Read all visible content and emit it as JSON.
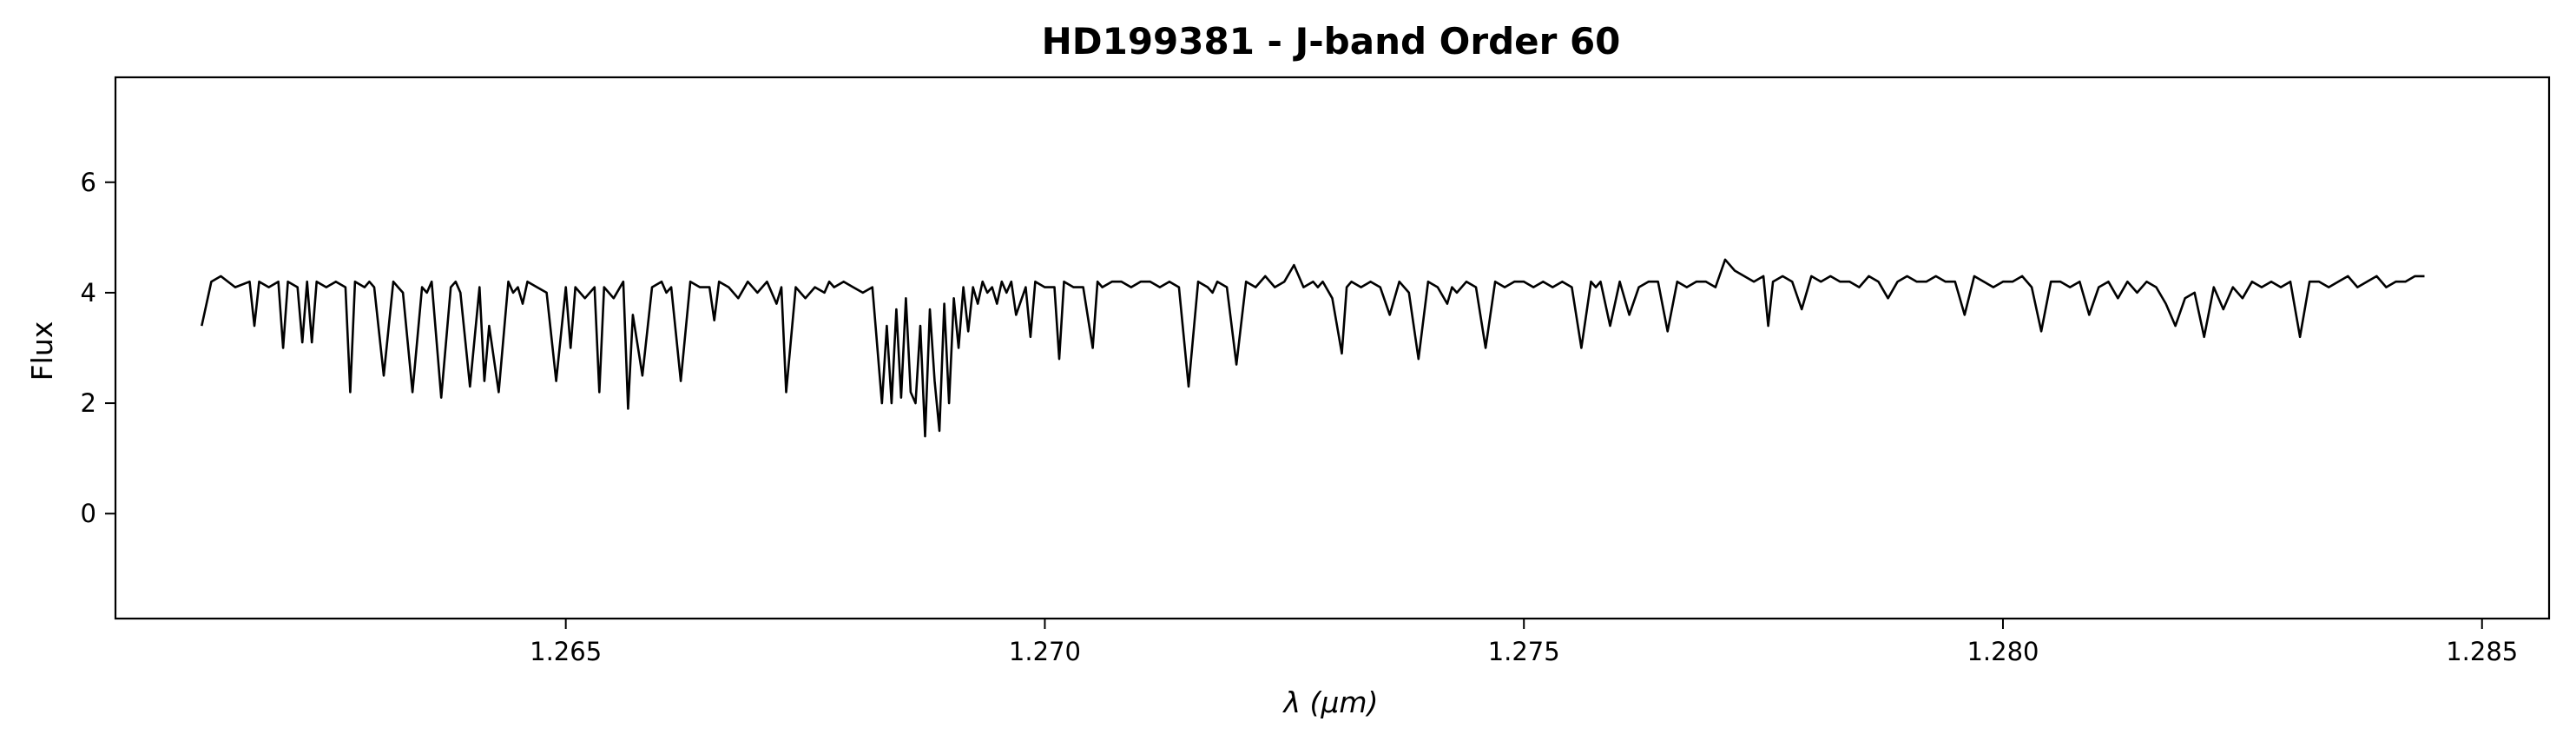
{
  "chart_data": {
    "type": "line",
    "title": "HD199381 - J-band Order 60",
    "xlabel": "λ (μm)",
    "ylabel": "Flux",
    "xlim": [
      1.2603,
      1.2857
    ],
    "ylim": [
      -1.9,
      7.9
    ],
    "xticks": [
      "1.265",
      "1.270",
      "1.275",
      "1.280",
      "1.285"
    ],
    "xtick_values": [
      1.265,
      1.27,
      1.275,
      1.28,
      1.285
    ],
    "yticks": [
      "0",
      "2",
      "4",
      "6"
    ],
    "ytick_values": [
      0,
      2,
      4,
      6
    ],
    "grid": false,
    "line_color": "#000000",
    "series": [
      {
        "x": [
          1.2612,
          1.2613,
          1.2614,
          1.26155,
          1.2617,
          1.26175,
          1.2618,
          1.2619,
          1.262,
          1.26205,
          1.2621,
          1.2622,
          1.26225,
          1.2623,
          1.26235,
          1.2624,
          1.2625,
          1.2626,
          1.2627,
          1.26275,
          1.2628,
          1.2629,
          1.26295,
          1.263,
          1.2631,
          1.2632,
          1.26325,
          1.2633,
          1.2634,
          1.2635,
          1.26355,
          1.2636,
          1.2637,
          1.2638,
          1.26385,
          1.2639,
          1.264,
          1.2641,
          1.26415,
          1.2642,
          1.2643,
          1.2644,
          1.26445,
          1.2645,
          1.26455,
          1.2646,
          1.2647,
          1.2648,
          1.2649,
          1.265,
          1.26505,
          1.2651,
          1.2652,
          1.2653,
          1.26535,
          1.2654,
          1.2655,
          1.2656,
          1.26565,
          1.2657,
          1.2658,
          1.2659,
          1.266,
          1.26605,
          1.2661,
          1.2662,
          1.2663,
          1.2664,
          1.2665,
          1.26655,
          1.2666,
          1.2667,
          1.2668,
          1.2669,
          1.267,
          1.2671,
          1.2672,
          1.26725,
          1.2673,
          1.2674,
          1.2675,
          1.2676,
          1.2677,
          1.26775,
          1.2678,
          1.2679,
          1.268,
          1.2681,
          1.2682,
          1.2683,
          1.26835,
          1.2684,
          1.26845,
          1.2685,
          1.26855,
          1.2686,
          1.26865,
          1.2687,
          1.26875,
          1.2688,
          1.26885,
          1.2689,
          1.26895,
          1.269,
          1.26905,
          1.2691,
          1.26915,
          1.2692,
          1.26925,
          1.2693,
          1.26935,
          1.2694,
          1.26945,
          1.2695,
          1.26955,
          1.2696,
          1.26965,
          1.2697,
          1.2698,
          1.26985,
          1.2699,
          1.27,
          1.2701,
          1.27015,
          1.2702,
          1.2703,
          1.2704,
          1.2705,
          1.27055,
          1.2706,
          1.2707,
          1.2708,
          1.2709,
          1.271,
          1.2711,
          1.2712,
          1.2713,
          1.2714,
          1.2715,
          1.2716,
          1.2717,
          1.27175,
          1.2718,
          1.2719,
          1.272,
          1.2721,
          1.2722,
          1.2723,
          1.2724,
          1.2725,
          1.2726,
          1.2727,
          1.2728,
          1.27285,
          1.2729,
          1.273,
          1.2731,
          1.27315,
          1.2732,
          1.2733,
          1.2734,
          1.2735,
          1.2736,
          1.2737,
          1.2738,
          1.2739,
          1.274,
          1.2741,
          1.2742,
          1.27425,
          1.2743,
          1.2744,
          1.2745,
          1.2746,
          1.2747,
          1.2748,
          1.2749,
          1.275,
          1.2751,
          1.2752,
          1.2753,
          1.2754,
          1.2755,
          1.2756,
          1.2757,
          1.27575,
          1.2758,
          1.2759,
          1.276,
          1.2761,
          1.2762,
          1.2763,
          1.2764,
          1.2765,
          1.2766,
          1.2767,
          1.2768,
          1.2769,
          1.277,
          1.2771,
          1.2772,
          1.2773,
          1.2774,
          1.2775,
          1.27755,
          1.2776,
          1.2777,
          1.2778,
          1.2779,
          1.278,
          1.2781,
          1.2782,
          1.2783,
          1.2784,
          1.2785,
          1.2786,
          1.2787,
          1.2788,
          1.2789,
          1.279,
          1.2791,
          1.2792,
          1.2793,
          1.2794,
          1.2795,
          1.2796,
          1.2797,
          1.2798,
          1.2799,
          1.28,
          1.2801,
          1.2802,
          1.2803,
          1.2804,
          1.2805,
          1.2806,
          1.2807,
          1.2808,
          1.2809,
          1.281,
          1.2811,
          1.2812,
          1.2813,
          1.2814,
          1.2815,
          1.2816,
          1.2817,
          1.2818,
          1.2819,
          1.282,
          1.2821,
          1.2822,
          1.2823,
          1.2824,
          1.2825,
          1.2826,
          1.2827,
          1.2828,
          1.2829,
          1.283,
          1.2831,
          1.2832,
          1.2833,
          1.2834,
          1.2835,
          1.2836,
          1.2837,
          1.2838,
          1.2839,
          1.284,
          1.2841,
          1.2842,
          1.2843,
          1.2844
        ],
        "y": [
          3.4,
          4.2,
          4.3,
          4.1,
          4.2,
          3.4,
          4.2,
          4.1,
          4.2,
          3.0,
          4.2,
          4.1,
          3.1,
          4.2,
          3.1,
          4.2,
          4.1,
          4.2,
          4.1,
          2.2,
          4.2,
          4.1,
          4.2,
          4.1,
          2.5,
          4.2,
          4.1,
          4.0,
          2.2,
          4.1,
          4.0,
          4.2,
          2.1,
          4.1,
          4.2,
          4.0,
          2.3,
          4.1,
          2.4,
          3.4,
          2.2,
          4.2,
          4.0,
          4.1,
          3.8,
          4.2,
          4.1,
          4.0,
          2.4,
          4.1,
          3.0,
          4.1,
          3.9,
          4.1,
          2.2,
          4.1,
          3.9,
          4.2,
          1.9,
          3.6,
          2.5,
          4.1,
          4.2,
          4.0,
          4.1,
          2.4,
          4.2,
          4.1,
          4.1,
          3.5,
          4.2,
          4.1,
          3.9,
          4.2,
          4.0,
          4.2,
          3.8,
          4.1,
          2.2,
          4.1,
          3.9,
          4.1,
          4.0,
          4.2,
          4.1,
          4.2,
          4.1,
          4.0,
          4.1,
          2.0,
          3.4,
          2.0,
          3.7,
          2.1,
          3.9,
          2.2,
          2.0,
          3.4,
          1.4,
          3.7,
          2.4,
          1.5,
          3.8,
          2.0,
          3.9,
          3.0,
          4.1,
          3.3,
          4.1,
          3.8,
          4.2,
          4.0,
          4.1,
          3.8,
          4.2,
          4.0,
          4.2,
          3.6,
          4.1,
          3.2,
          4.2,
          4.1,
          4.1,
          2.8,
          4.2,
          4.1,
          4.1,
          3.0,
          4.2,
          4.1,
          4.2,
          4.2,
          4.1,
          4.2,
          4.2,
          4.1,
          4.2,
          4.1,
          2.3,
          4.2,
          4.1,
          4.0,
          4.2,
          4.1,
          2.7,
          4.2,
          4.1,
          4.3,
          4.1,
          4.2,
          4.5,
          4.1,
          4.2,
          4.1,
          4.2,
          3.9,
          2.9,
          4.1,
          4.2,
          4.1,
          4.2,
          4.1,
          3.6,
          4.2,
          4.0,
          2.8,
          4.2,
          4.1,
          3.8,
          4.1,
          4.0,
          4.2,
          4.1,
          3.0,
          4.2,
          4.1,
          4.2,
          4.2,
          4.1,
          4.2,
          4.1,
          4.2,
          4.1,
          3.0,
          4.2,
          4.1,
          4.2,
          3.4,
          4.2,
          3.6,
          4.1,
          4.2,
          4.2,
          3.3,
          4.2,
          4.1,
          4.2,
          4.2,
          4.1,
          4.6,
          4.4,
          4.3,
          4.2,
          4.3,
          3.4,
          4.2,
          4.3,
          4.2,
          3.7,
          4.3,
          4.2,
          4.3,
          4.2,
          4.2,
          4.1,
          4.3,
          4.2,
          3.9,
          4.2,
          4.3,
          4.2,
          4.2,
          4.3,
          4.2,
          4.2,
          3.6,
          4.3,
          4.2,
          4.1,
          4.2,
          4.2,
          4.3,
          4.1,
          3.3,
          4.2,
          4.2,
          4.1,
          4.2,
          3.6,
          4.1,
          4.2,
          3.9,
          4.2,
          4.0,
          4.2,
          4.1,
          3.8,
          3.4,
          3.9,
          4.0,
          3.2,
          4.1,
          3.7,
          4.1,
          3.9,
          4.2,
          4.1,
          4.2,
          4.1,
          4.2,
          3.2,
          4.2,
          4.2,
          4.1,
          4.2,
          4.3,
          4.1,
          4.2,
          4.3,
          4.1,
          4.2,
          4.2,
          4.3,
          4.3
        ]
      }
    ]
  }
}
